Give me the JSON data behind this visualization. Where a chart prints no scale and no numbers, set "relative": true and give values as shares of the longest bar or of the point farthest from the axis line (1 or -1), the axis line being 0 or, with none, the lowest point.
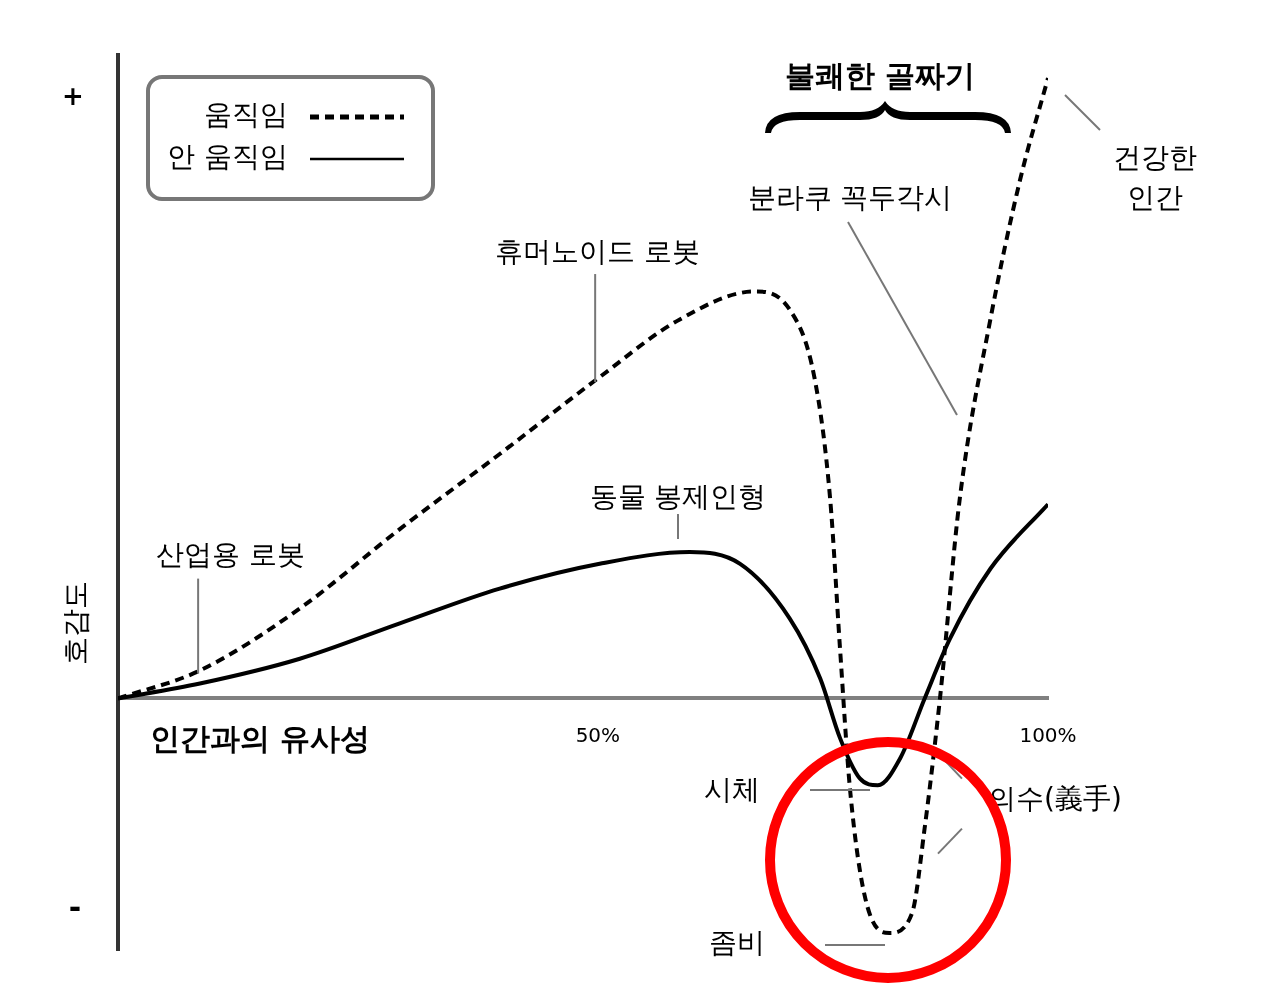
{
  "chart_data": {
    "type": "line",
    "relative": true,
    "xlabel": "인간과의 유사성",
    "ylabel": "호감도",
    "legend": "top left",
    "marker": "none",
    "tick_labels": "x",
    "xlim": [
      -3.3,
      100
    ],
    "xticks": [
      {
        "value": 50,
        "label": "50%"
      },
      {
        "value": 100,
        "label": "100%"
      }
    ],
    "series": [
      {
        "name": "움직임",
        "color": "#000000",
        "line_style": "dashed",
        "x": [
          -3.3,
          5.8,
          16.9,
          28,
          39.1,
          50.2,
          59.1,
          67.4,
          71.3,
          74.1,
          75.8,
          76.9,
          78,
          79.7,
          82.4,
          84.9,
          86.3,
          88,
          90.2,
          93.6,
          96.9,
          100
        ],
        "values": [
          0,
          0.045,
          0.145,
          0.273,
          0.394,
          0.518,
          0.611,
          0.656,
          0.627,
          0.514,
          0.322,
          0.08,
          -0.145,
          -0.322,
          -0.378,
          -0.346,
          -0.209,
          0,
          0.322,
          0.611,
          0.836,
          1
        ]
      },
      {
        "name": "안 움직임",
        "color": "#000000",
        "line_style": "solid",
        "x": [
          -3.3,
          5.8,
          16.9,
          28,
          39.1,
          50.2,
          60.2,
          65.8,
          71.3,
          74.7,
          76.9,
          79.1,
          81.1,
          83.6,
          86.3,
          89.1,
          93.6,
          100
        ],
        "values": [
          0,
          0.024,
          0.064,
          0.121,
          0.177,
          0.217,
          0.236,
          0.217,
          0.129,
          0.032,
          -0.064,
          -0.129,
          -0.14,
          -0.096,
          0,
          0.096,
          0.209,
          0.313
        ]
      }
    ],
    "annotations": [
      {
        "text": "산업용 로봇",
        "x": 5.6,
        "y": 0.04
      },
      {
        "text": "동물 봉제인형",
        "x": 58.9,
        "y": 0.236
      },
      {
        "text": "휴머노이드 로봇",
        "x": 49.7,
        "y": 0.51
      },
      "분라쿠 꼭두각시",
      "건강한\n인간",
      "시체",
      "좀비",
      {
        "text": "의수(義手)",
        "x": 88,
        "y": -0.06
      },
      "+",
      "-",
      "불쾌한 골짜기"
    ]
  }
}
